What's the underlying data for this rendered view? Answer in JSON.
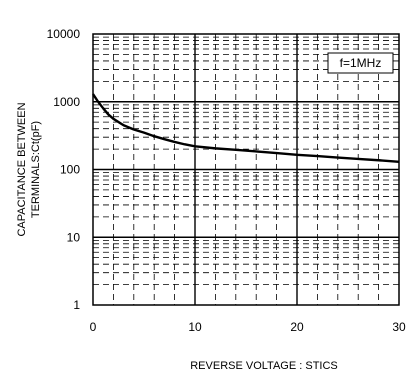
{
  "chart_data": {
    "type": "line",
    "title": "",
    "xlabel": "REVERSE VOLTAGE : STICS",
    "ylabel_lines": [
      "CAPACITANCE BETWEEN",
      "TERMINALS:Ct(pF)"
    ],
    "yscale": "log",
    "xlim": [
      0,
      30
    ],
    "ylim": [
      1,
      10000
    ],
    "x_ticks": [
      "0",
      "10",
      "20",
      "30"
    ],
    "y_ticks": [
      "1",
      "10",
      "100",
      "1000",
      "10000"
    ],
    "grid": true,
    "legend_position": "top-right",
    "annotation": "f=1MHz",
    "series": [
      {
        "x": [
          0,
          0.5,
          1,
          1.5,
          2,
          3,
          4,
          5,
          6,
          7,
          8,
          9,
          10,
          12,
          14,
          16,
          18,
          20,
          22,
          24,
          26,
          28,
          30
        ],
        "y": [
          1300,
          1000,
          800,
          650,
          560,
          450,
          390,
          350,
          310,
          280,
          255,
          235,
          220,
          205,
          195,
          185,
          175,
          165,
          158,
          150,
          143,
          137,
          130
        ]
      }
    ],
    "colors": {
      "line": "#000000",
      "grid": "#000000",
      "background": "#ffffff"
    }
  }
}
